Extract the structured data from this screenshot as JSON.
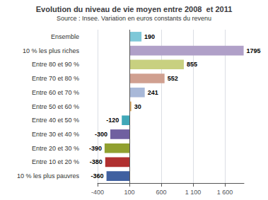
{
  "chart_data": {
    "type": "bar",
    "orientation": "horizontal",
    "title": "Evolution du niveau de vie moyen entre 2008  et 2011",
    "subtitle": "Source : Insee. Variation en euros constants du revenu",
    "categories": [
      "Ensemble",
      "10 % les plus riches",
      "Entre 80 et 90 %",
      "Entre 70 et 80 %",
      "Entre 60 et 70 %",
      "Entre 50 et 60 %",
      "Entre 40 et 50 %",
      "Entre 30 et 40 %",
      "Entre 20 et 30 %",
      "Entre 10 et 20 %",
      "10 % les plus pauvres"
    ],
    "values": [
      190,
      1795,
      855,
      552,
      241,
      30,
      -120,
      -300,
      -390,
      -380,
      -360
    ],
    "colors": [
      "#7ec8d8",
      "#b0a0c8",
      "#c8d080",
      "#d0a090",
      "#a8b8d8",
      "#d8a860",
      "#40a8b8",
      "#7060a0",
      "#90a030",
      "#b03030",
      "#4060a0"
    ],
    "baseline": 100,
    "xlim": [
      -400,
      1900
    ],
    "xticks": [
      -400,
      100,
      600,
      {
        "value": 1100,
        "label": "1 100"
      },
      {
        "value": 1600,
        "label": "1 600"
      }
    ],
    "grid": true,
    "data_labels": true
  }
}
